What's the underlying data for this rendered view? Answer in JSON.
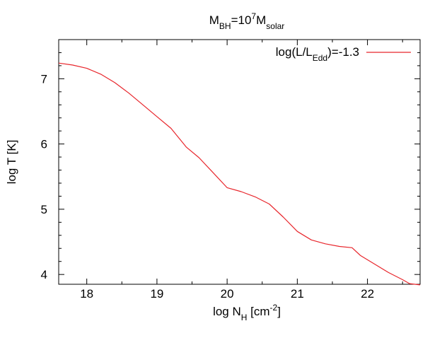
{
  "chart_data": {
    "type": "line",
    "title": {
      "base": "M",
      "sub1": "BH",
      "mid": "=10",
      "sup": "7",
      "base2": "M",
      "sub2": "solar"
    },
    "xlabel": {
      "base": "log N",
      "sub": "H",
      "mid": " [cm",
      "sup": "-2",
      "end": "]"
    },
    "ylabel": "log T [K]",
    "xlim": [
      17.6,
      22.75
    ],
    "ylim": [
      3.85,
      7.6
    ],
    "xticks": [
      18,
      19,
      20,
      21,
      22
    ],
    "yticks": [
      4,
      5,
      6,
      7
    ],
    "grid": false,
    "legend_position": "top-right",
    "series": [
      {
        "legend": {
          "pre": "log(L/L",
          "sub": "Edd",
          "post": ")=-1.3"
        },
        "color": "#e8262c",
        "x": [
          17.6,
          17.8,
          18.0,
          18.2,
          18.4,
          18.6,
          18.8,
          19.0,
          19.2,
          19.42,
          19.6,
          19.8,
          20.0,
          20.2,
          20.4,
          20.6,
          20.8,
          21.0,
          21.2,
          21.4,
          21.6,
          21.78,
          21.9,
          22.1,
          22.3,
          22.5,
          22.6,
          22.75
        ],
        "y": [
          7.24,
          7.21,
          7.16,
          7.07,
          6.94,
          6.78,
          6.6,
          6.42,
          6.24,
          5.95,
          5.79,
          5.56,
          5.33,
          5.27,
          5.19,
          5.08,
          4.88,
          4.66,
          4.53,
          4.47,
          4.43,
          4.41,
          4.29,
          4.16,
          4.03,
          3.92,
          3.86,
          3.84
        ]
      }
    ]
  }
}
